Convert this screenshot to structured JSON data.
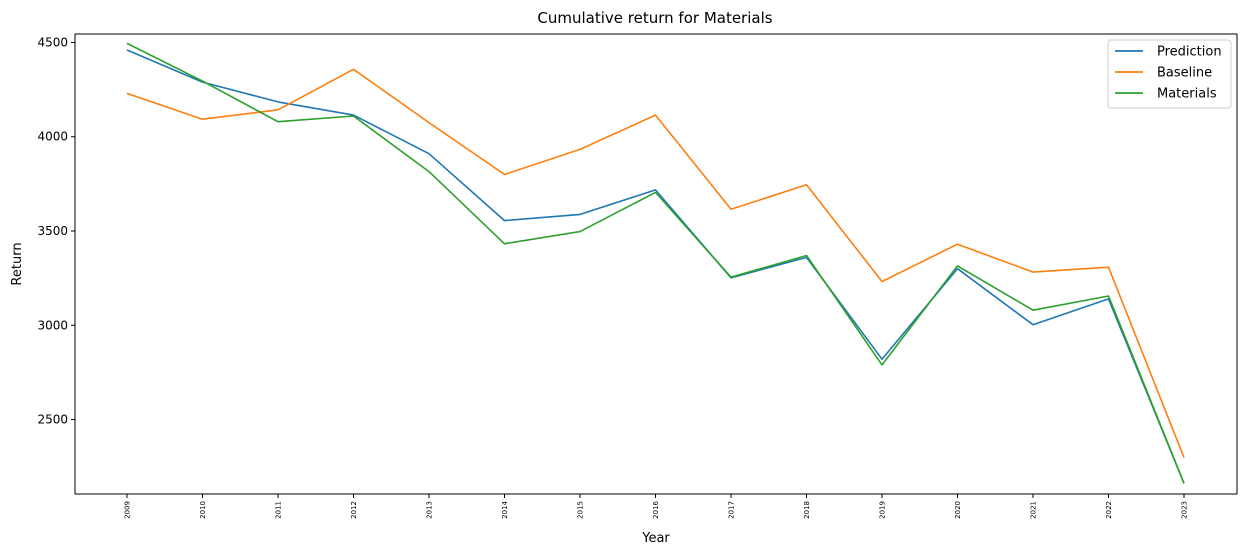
{
  "chart_data": {
    "type": "line",
    "title": "Cumulative return for Materials",
    "xlabel": "Year",
    "ylabel": "Return",
    "x": [
      "2009",
      "2010",
      "2011",
      "2012",
      "2013",
      "2014",
      "2015",
      "2016",
      "2017",
      "2018",
      "2019",
      "2020",
      "2021",
      "2022",
      "2023"
    ],
    "yticks": [
      2500,
      3000,
      3500,
      4000,
      4500
    ],
    "ylim": [
      2105,
      4545
    ],
    "grid": false,
    "legend_position": "top-right",
    "series": [
      {
        "name": "Prediction",
        "color": "#1f77b4",
        "values": [
          4460,
          4290,
          4185,
          4115,
          3910,
          3555,
          3588,
          3718,
          3252,
          3360,
          2820,
          3300,
          3003,
          3140,
          2162
        ]
      },
      {
        "name": "Baseline",
        "color": "#ff7f0e",
        "values": [
          4230,
          4093,
          4143,
          4358,
          4075,
          3800,
          3933,
          4115,
          3615,
          3745,
          3232,
          3430,
          3282,
          3308,
          2298
        ]
      },
      {
        "name": "Materials",
        "color": "#2ca02c",
        "values": [
          4495,
          4295,
          4080,
          4110,
          3815,
          3432,
          3497,
          3705,
          3255,
          3370,
          2790,
          3315,
          3080,
          3155,
          2162
        ]
      }
    ]
  }
}
